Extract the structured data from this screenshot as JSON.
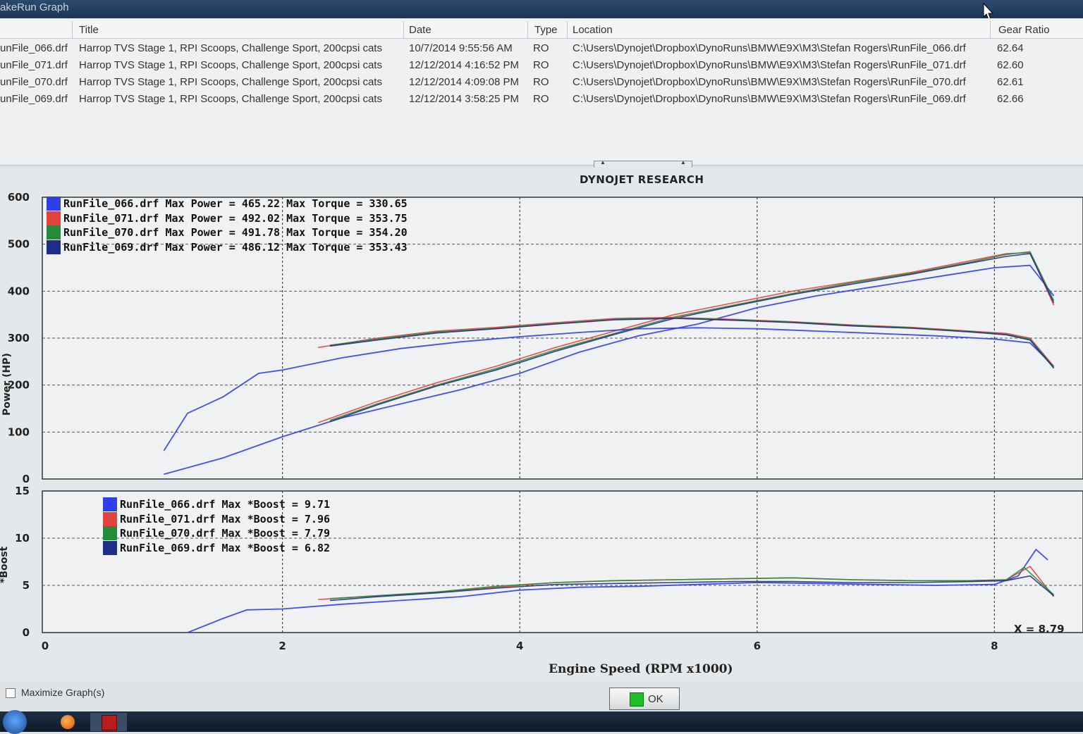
{
  "window": {
    "title": "akeRun Graph"
  },
  "runlist": {
    "columns": [
      "Title",
      "Date",
      "Type",
      "Location",
      "Gear Ratio"
    ],
    "rows": [
      [
        "unFile_066.drf",
        "Harrop TVS Stage 1, RPI Scoops, Challenge Sport, 200cpsi cats",
        "10/7/2014 9:55:56 AM",
        "RO",
        "C:\\Users\\Dynojet\\Dropbox\\DynoRuns\\BMW\\E9X\\M3\\Stefan Rogers\\RunFile_066.drf",
        "62.64"
      ],
      [
        "unFile_071.drf",
        "Harrop TVS Stage 1, RPI Scoops, Challenge Sport, 200cpsi cats",
        "12/12/2014 4:16:52 PM",
        "RO",
        "C:\\Users\\Dynojet\\Dropbox\\DynoRuns\\BMW\\E9X\\M3\\Stefan Rogers\\RunFile_071.drf",
        "62.60"
      ],
      [
        "unFile_070.drf",
        "Harrop TVS Stage 1, RPI Scoops, Challenge Sport, 200cpsi cats",
        "12/12/2014 4:09:08 PM",
        "RO",
        "C:\\Users\\Dynojet\\Dropbox\\DynoRuns\\BMW\\E9X\\M3\\Stefan Rogers\\RunFile_070.drf",
        "62.61"
      ],
      [
        "unFile_069.drf",
        "Harrop TVS Stage 1, RPI Scoops, Challenge Sport, 200cpsi cats",
        "12/12/2014 3:58:25 PM",
        "RO",
        "C:\\Users\\Dynojet\\Dropbox\\DynoRuns\\BMW\\E9X\\M3\\Stefan Rogers\\RunFile_069.drf",
        "62.66"
      ]
    ]
  },
  "graph": {
    "company": "DYNOJET RESEARCH",
    "power_legend": [
      "RunFile_066.drf Max Power = 465.22 Max Torque = 330.65",
      "RunFile_071.drf Max Power = 492.02 Max Torque = 353.75",
      "RunFile_070.drf Max Power = 491.78 Max Torque = 354.20",
      "RunFile_069.drf Max Power = 486.12 Max Torque = 353.43"
    ],
    "boost_legend": [
      "RunFile_066.drf Max *Boost = 9.71",
      "RunFile_071.drf Max *Boost = 7.96",
      "RunFile_070.drf Max *Boost = 7.79",
      "RunFile_069.drf Max *Boost = 6.82"
    ],
    "x_readout": "X = 8.79",
    "power_ylabel": "Power (HP)",
    "boost_ylabel": "*Boost",
    "xlabel": "Engine Speed (RPM x1000)",
    "colors": [
      "#2f3fe6",
      "#e5413c",
      "#238c3a",
      "#1f2c88"
    ]
  },
  "chart_data": [
    {
      "type": "line",
      "title": "DYNOJET RESEARCH",
      "xlabel": "Engine Speed (RPM x1000)",
      "ylabel": "Power (HP)",
      "xlim": [
        0,
        8.5
      ],
      "ylim": [
        0,
        600
      ],
      "x_ticks": [],
      "y_ticks": [
        0,
        100,
        200,
        300,
        400,
        500,
        600
      ],
      "grid": true,
      "series": [
        {
          "name": "RunFile_066.drf Power",
          "x": [
            1,
            1.5,
            2,
            2.5,
            3,
            3.5,
            4,
            4.5,
            5,
            5.5,
            6,
            6.5,
            7,
            7.5,
            8,
            8.3,
            8.5
          ],
          "y": [
            10,
            45,
            90,
            130,
            160,
            190,
            225,
            270,
            305,
            330,
            365,
            390,
            410,
            430,
            450,
            455,
            390
          ]
        },
        {
          "name": "RunFile_071.drf Power",
          "x": [
            2.3,
            2.8,
            3.3,
            3.8,
            4.3,
            4.8,
            5.3,
            5.8,
            6.3,
            6.8,
            7.3,
            7.8,
            8.1,
            8.3,
            8.5
          ],
          "y": [
            120,
            165,
            205,
            240,
            280,
            315,
            350,
            375,
            400,
            420,
            440,
            465,
            480,
            482,
            370
          ]
        },
        {
          "name": "RunFile_070.drf Power",
          "x": [
            2.4,
            2.8,
            3.3,
            3.8,
            4.3,
            4.8,
            5.3,
            5.8,
            6.3,
            6.8,
            7.3,
            7.8,
            8.1,
            8.3,
            8.5
          ],
          "y": [
            125,
            160,
            200,
            235,
            275,
            310,
            345,
            370,
            395,
            418,
            438,
            462,
            478,
            484,
            380
          ]
        },
        {
          "name": "RunFile_069.drf Power",
          "x": [
            2.4,
            2.8,
            3.3,
            3.8,
            4.3,
            4.8,
            5.3,
            5.8,
            6.3,
            6.8,
            7.3,
            7.8,
            8.1,
            8.3,
            8.5
          ],
          "y": [
            122,
            158,
            198,
            232,
            272,
            308,
            342,
            368,
            393,
            415,
            436,
            460,
            474,
            480,
            375
          ]
        },
        {
          "name": "RunFile_066.drf Torque",
          "x": [
            1,
            1.2,
            1.5,
            1.8,
            2,
            2.5,
            3,
            3.5,
            4,
            4.5,
            5,
            5.5,
            6,
            6.5,
            7,
            7.5,
            8,
            8.3,
            8.5
          ],
          "y": [
            60,
            140,
            175,
            225,
            232,
            258,
            278,
            292,
            303,
            312,
            320,
            322,
            320,
            315,
            310,
            305,
            298,
            290,
            240
          ]
        },
        {
          "name": "RunFile_071.drf Torque",
          "x": [
            2.3,
            2.8,
            3.3,
            3.8,
            4.3,
            4.8,
            5.3,
            5.8,
            6.3,
            6.8,
            7.3,
            7.8,
            8.1,
            8.3,
            8.5
          ],
          "y": [
            280,
            300,
            315,
            323,
            333,
            342,
            344,
            340,
            335,
            328,
            323,
            315,
            310,
            300,
            240
          ]
        },
        {
          "name": "RunFile_070.drf Torque",
          "x": [
            2.4,
            2.8,
            3.3,
            3.8,
            4.3,
            4.8,
            5.3,
            5.8,
            6.3,
            6.8,
            7.3,
            7.8,
            8.1,
            8.3,
            8.5
          ],
          "y": [
            285,
            298,
            313,
            321,
            331,
            340,
            343,
            339,
            334,
            327,
            322,
            314,
            308,
            298,
            238
          ]
        },
        {
          "name": "RunFile_069.drf Torque",
          "x": [
            2.4,
            2.8,
            3.3,
            3.8,
            4.3,
            4.8,
            5.3,
            5.8,
            6.3,
            6.8,
            7.3,
            7.8,
            8.1,
            8.3,
            8.5
          ],
          "y": [
            283,
            296,
            311,
            320,
            330,
            339,
            342,
            338,
            333,
            326,
            321,
            313,
            307,
            296,
            236
          ]
        }
      ]
    },
    {
      "type": "line",
      "xlabel": "Engine Speed (RPM x1000)",
      "ylabel": "*Boost",
      "xlim": [
        0,
        8.5
      ],
      "ylim": [
        0,
        15
      ],
      "x_ticks": [
        0,
        2,
        4,
        6,
        8
      ],
      "y_ticks": [
        0,
        5,
        10,
        15
      ],
      "grid": true,
      "series": [
        {
          "name": "RunFile_066.drf *Boost",
          "x": [
            1.2,
            1.5,
            1.7,
            2,
            2.5,
            3,
            3.5,
            4,
            4.5,
            5,
            5.5,
            6,
            6.5,
            7,
            7.5,
            8,
            8.2,
            8.35,
            8.45
          ],
          "y": [
            0,
            1.5,
            2.4,
            2.5,
            3,
            3.4,
            3.8,
            4.5,
            4.8,
            4.9,
            5.1,
            5.3,
            5.2,
            5.1,
            5.0,
            5.1,
            6.0,
            8.8,
            7.7
          ]
        },
        {
          "name": "RunFile_071.drf *Boost",
          "x": [
            2.3,
            2.8,
            3.3,
            3.8,
            4.3,
            4.8,
            5.3,
            5.8,
            6.3,
            6.8,
            7.3,
            7.8,
            8.1,
            8.3,
            8.5
          ],
          "y": [
            3.5,
            3.9,
            4.3,
            4.8,
            5.3,
            5.5,
            5.6,
            5.7,
            5.8,
            5.6,
            5.5,
            5.5,
            5.6,
            7.0,
            3.8
          ]
        },
        {
          "name": "RunFile_070.drf *Boost",
          "x": [
            2.4,
            2.8,
            3.3,
            3.8,
            4.3,
            4.8,
            5.3,
            5.8,
            6.3,
            6.8,
            7.3,
            7.8,
            8.1,
            8.25,
            8.5
          ],
          "y": [
            3.6,
            3.9,
            4.3,
            4.9,
            5.3,
            5.5,
            5.6,
            5.7,
            5.8,
            5.6,
            5.5,
            5.5,
            5.6,
            6.9,
            4.0
          ]
        },
        {
          "name": "RunFile_069.drf *Boost",
          "x": [
            2.4,
            2.8,
            3.3,
            3.8,
            4.3,
            4.8,
            5.3,
            5.8,
            6.3,
            6.8,
            7.3,
            7.8,
            8.1,
            8.3,
            8.5
          ],
          "y": [
            3.4,
            3.8,
            4.2,
            4.7,
            5.1,
            5.2,
            5.3,
            5.4,
            5.4,
            5.3,
            5.3,
            5.4,
            5.5,
            6.0,
            3.9
          ]
        }
      ]
    }
  ],
  "footer": {
    "maximize_label": "Maximize Graph(s)",
    "ok_label": "OK"
  }
}
